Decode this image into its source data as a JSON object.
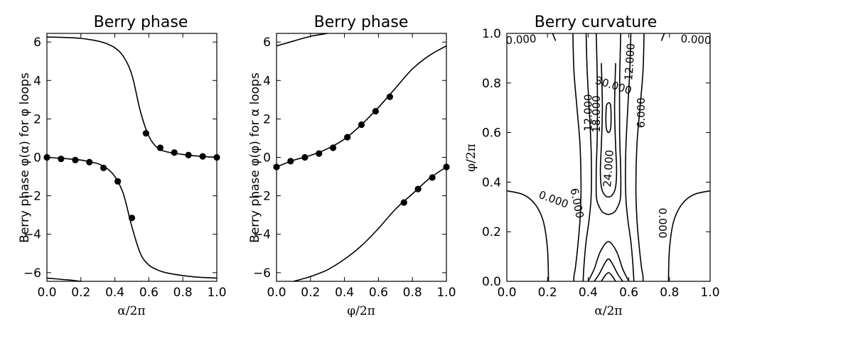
{
  "chart_data": [
    {
      "type": "line",
      "title": "Berry phase",
      "xlabel": "α/2π",
      "ylabel": "Berry phase φ(α) for φ loops",
      "xlim": [
        0,
        1
      ],
      "ylim": [
        -6.45,
        6.45
      ],
      "xticks": [
        "0.0",
        "0.2",
        "0.4",
        "0.6",
        "0.8",
        "1.0"
      ],
      "yticks": [
        "6",
        "4",
        "2",
        "0",
        "−2",
        "−4",
        "−6"
      ],
      "grid": false,
      "curves": [
        {
          "x": [
            0,
            0.1,
            0.2,
            0.3,
            0.35,
            0.4,
            0.45,
            0.5,
            0.55,
            0.6,
            0.65,
            0.7,
            0.8,
            0.9,
            1.0
          ],
          "y": [
            6.26,
            6.24,
            6.19,
            6.05,
            5.92,
            5.7,
            5.25,
            4.3,
            2.4,
            1.1,
            0.5,
            0.3,
            0.15,
            0.06,
            0.0
          ]
        },
        {
          "x": [
            0,
            0.1,
            0.2,
            0.25,
            0.3,
            0.35,
            0.4,
            0.45,
            0.5,
            0.55,
            0.6,
            0.65,
            0.7,
            0.8,
            0.9,
            1.0
          ],
          "y": [
            0.0,
            -0.06,
            -0.14,
            -0.23,
            -0.33,
            -0.55,
            -1.0,
            -1.9,
            -3.6,
            -5.0,
            -5.6,
            -5.85,
            -6.0,
            -6.15,
            -6.24,
            -6.28
          ]
        },
        {
          "x": [
            0,
            0.05,
            0.1,
            0.15,
            0.2
          ],
          "y": [
            -6.28,
            -6.32,
            -6.36,
            -6.4,
            -6.45
          ]
        }
      ],
      "markers": {
        "x": [
          0,
          0.083,
          0.167,
          0.25,
          0.333,
          0.417,
          0.5,
          0.583,
          0.667,
          0.75,
          0.833,
          0.917,
          1.0
        ],
        "y": [
          0.0,
          -0.08,
          -0.14,
          -0.25,
          -0.55,
          -1.25,
          -3.15,
          1.25,
          0.5,
          0.25,
          0.12,
          0.05,
          0.0
        ]
      }
    },
    {
      "type": "line",
      "title": "Berry phase",
      "xlabel": "φ/2π",
      "ylabel": "Berry phase φ(φ) for α loops",
      "xlim": [
        0,
        1
      ],
      "ylim": [
        -6.45,
        6.45
      ],
      "xticks": [
        "0.0",
        "0.2",
        "0.4",
        "0.6",
        "0.8",
        "1.0"
      ],
      "yticks": [
        "6",
        "4",
        "2",
        "0",
        "−2",
        "−4",
        "−6"
      ],
      "grid": false,
      "curves": [
        {
          "x": [
            0,
            0.1,
            0.2,
            0.3,
            0.4,
            0.5,
            0.6,
            0.7,
            0.8,
            0.9,
            1.0
          ],
          "y": [
            -0.5,
            -0.15,
            0.1,
            0.45,
            0.95,
            1.7,
            2.6,
            3.6,
            4.6,
            5.3,
            5.8
          ]
        },
        {
          "x": [
            0,
            0.1,
            0.2,
            0.3
          ],
          "y": [
            5.8,
            6.05,
            6.3,
            6.45
          ]
        },
        {
          "x": [
            0.1,
            0.2,
            0.3,
            0.4,
            0.5,
            0.6,
            0.7,
            0.8,
            0.9,
            1.0
          ],
          "y": [
            -6.45,
            -6.2,
            -5.85,
            -5.3,
            -4.6,
            -3.7,
            -2.7,
            -1.9,
            -1.1,
            -0.5
          ]
        }
      ],
      "markers": {
        "x": [
          0,
          0.083,
          0.167,
          0.25,
          0.333,
          0.417,
          0.5,
          0.583,
          0.667,
          0.75,
          0.833,
          0.917,
          1.0
        ],
        "y": [
          -0.5,
          -0.2,
          0.0,
          0.2,
          0.5,
          1.05,
          1.7,
          2.4,
          3.15,
          -2.35,
          -1.65,
          -1.05,
          -0.5
        ]
      }
    },
    {
      "type": "contour",
      "title": "Berry curvature",
      "xlabel": "α/2π",
      "ylabel": "φ/2π",
      "xlim": [
        0,
        1
      ],
      "ylim": [
        0,
        1
      ],
      "xticks": [
        "0.0",
        "0.2",
        "0.4",
        "0.6",
        "0.8",
        "1.0"
      ],
      "yticks": [
        "1.0",
        "0.8",
        "0.6",
        "0.4",
        "0.2",
        "0.0"
      ],
      "grid": false,
      "levels": [
        0,
        6,
        12,
        18,
        24,
        30
      ],
      "contour_labels": [
        "0.000",
        "0.000",
        "0.000",
        "0.000",
        "6.000",
        "6.000",
        "12.000",
        "12.000",
        "18.000",
        "24.000",
        "30.000"
      ],
      "contours": [
        {
          "level": 0,
          "x": [
            0,
            0.08,
            0.14,
            0.18,
            0.2,
            0.205
          ],
          "y": [
            0.365,
            0.35,
            0.31,
            0.24,
            0.13,
            0.0
          ]
        },
        {
          "level": 0,
          "x": [
            1.0,
            0.92,
            0.86,
            0.82,
            0.8,
            0.795
          ],
          "y": [
            0.365,
            0.35,
            0.31,
            0.24,
            0.13,
            0.0
          ]
        },
        {
          "level": 0,
          "x": [
            0.225,
            0.24
          ],
          "y": [
            1.0,
            0.97
          ]
        },
        {
          "level": 0,
          "x": [
            0.775,
            0.76
          ],
          "y": [
            1.0,
            0.97
          ]
        },
        {
          "level": 6,
          "x": [
            0.325,
            0.33,
            0.345,
            0.36,
            0.365,
            0.36,
            0.35,
            0.338,
            0.33,
            0.33
          ],
          "y": [
            1.0,
            0.85,
            0.7,
            0.55,
            0.38,
            0.25,
            0.15,
            0.06,
            0.02,
            0.0
          ]
        },
        {
          "level": 6,
          "x": [
            0.675,
            0.67,
            0.655,
            0.64,
            0.635,
            0.64,
            0.65,
            0.662,
            0.67,
            0.67
          ],
          "y": [
            1.0,
            0.85,
            0.7,
            0.55,
            0.38,
            0.25,
            0.15,
            0.06,
            0.02,
            0.0
          ]
        },
        {
          "level": 12,
          "x": [
            0.39,
            0.395,
            0.405,
            0.415,
            0.415,
            0.405,
            0.39,
            0.38,
            0.375
          ],
          "y": [
            1.0,
            0.85,
            0.7,
            0.52,
            0.35,
            0.25,
            0.16,
            0.07,
            0.0
          ]
        },
        {
          "level": 12,
          "x": [
            0.61,
            0.605,
            0.595,
            0.585,
            0.585,
            0.595,
            0.61,
            0.62,
            0.625
          ],
          "y": [
            1.0,
            0.85,
            0.7,
            0.52,
            0.35,
            0.25,
            0.16,
            0.07,
            0.0
          ]
        },
        {
          "level": 18,
          "x": [
            0.44,
            0.445,
            0.445,
            0.44,
            0.44,
            0.445,
            0.455,
            0.47,
            0.5,
            0.53,
            0.545,
            0.555,
            0.56,
            0.56,
            0.555,
            0.555,
            0.56
          ],
          "y": [
            1.0,
            0.8,
            0.6,
            0.45,
            0.35,
            0.32,
            0.3,
            0.28,
            0.27,
            0.28,
            0.3,
            0.32,
            0.35,
            0.45,
            0.6,
            0.8,
            1.0
          ]
        },
        {
          "level": 24,
          "x": [
            0.465,
            0.47,
            0.465,
            0.46,
            0.465,
            0.48,
            0.5,
            0.52,
            0.535,
            0.54,
            0.535,
            0.53,
            0.535
          ],
          "y": [
            0.88,
            0.7,
            0.55,
            0.45,
            0.38,
            0.35,
            0.34,
            0.35,
            0.38,
            0.45,
            0.55,
            0.7,
            0.88
          ]
        },
        {
          "level": 30,
          "x": [
            0.49,
            0.487,
            0.49,
            0.5,
            0.51,
            0.513,
            0.51,
            0.5,
            0.49
          ],
          "y": [
            0.71,
            0.66,
            0.615,
            0.6,
            0.615,
            0.66,
            0.71,
            0.72,
            0.71
          ]
        },
        {
          "level": 6,
          "x": [
            0.4,
            0.43,
            0.46,
            0.5,
            0.54,
            0.57,
            0.6
          ],
          "y": [
            0.0,
            0.05,
            0.12,
            0.16,
            0.12,
            0.05,
            0.0
          ]
        },
        {
          "level": 12,
          "x": [
            0.43,
            0.455,
            0.48,
            0.5,
            0.52,
            0.545,
            0.57
          ],
          "y": [
            0.0,
            0.03,
            0.07,
            0.09,
            0.07,
            0.03,
            0.0
          ]
        },
        {
          "level": 18,
          "x": [
            0.465,
            0.485,
            0.5,
            0.515,
            0.535
          ],
          "y": [
            0.0,
            0.025,
            0.035,
            0.025,
            0.0
          ]
        }
      ]
    }
  ]
}
